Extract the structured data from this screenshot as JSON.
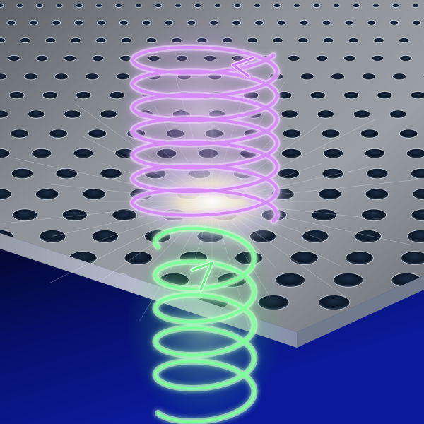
{
  "scene": {
    "subject": "perforated-slab-with-helical-beams",
    "colors": {
      "background_top": "#000000",
      "background_bottom": "#0a1a8a",
      "slab": "#8a9096",
      "slab_edge": "#c8cdd2",
      "hole": "#0d1a2e",
      "upper_helix": "#d58cf5",
      "upper_glow": "#f3d8ff",
      "lower_helix": "#7dff9a",
      "lower_glow": "#c8ffcf",
      "center_glow": "#fffbe8"
    },
    "upper_helix": {
      "turns": 7,
      "direction_arrow": "counterclockwise"
    },
    "lower_helix": {
      "turns": 5,
      "direction_arrow": "clockwise"
    }
  }
}
